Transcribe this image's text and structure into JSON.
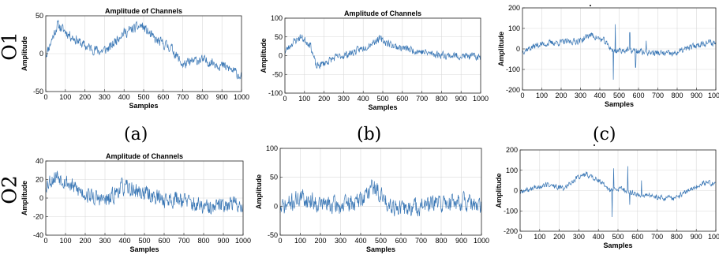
{
  "row_labels": [
    "O1",
    "O2"
  ],
  "sub_labels": [
    "(a)",
    "(b)",
    "(c)"
  ],
  "colors": {
    "line": "#3a77b5",
    "grid": "#d9d9d9",
    "frame": "#262626"
  },
  "chart_data": [
    {
      "id": "O1-a",
      "type": "line",
      "title": "Amplitude of Channels",
      "xlabel": "Samples",
      "ylabel": "Amplitude",
      "xlim": [
        0,
        1000
      ],
      "ylim": [
        -50,
        50
      ],
      "xticks": [
        0,
        100,
        200,
        300,
        400,
        500,
        600,
        700,
        800,
        900,
        1000
      ],
      "yticks": [
        -50,
        0,
        50
      ],
      "grid": true,
      "noise": 6,
      "seed": 11,
      "trend_x": [
        0,
        60,
        120,
        200,
        280,
        330,
        380,
        450,
        490,
        560,
        640,
        700,
        780,
        860,
        940,
        1000
      ],
      "trend_y": [
        -2,
        38,
        25,
        10,
        3,
        8,
        25,
        33,
        37,
        18,
        8,
        -15,
        -8,
        -12,
        -20,
        -30
      ]
    },
    {
      "id": "O1-b",
      "type": "line",
      "title": "Amplitude of Channels",
      "xlabel": "Samples",
      "ylabel": "Amplitude",
      "xlim": [
        0,
        1000
      ],
      "ylim": [
        -100,
        100
      ],
      "xticks": [
        0,
        100,
        200,
        300,
        400,
        500,
        600,
        700,
        800,
        900,
        1000
      ],
      "yticks": [
        -100,
        -50,
        0,
        50,
        100
      ],
      "grid": true,
      "noise": 9,
      "seed": 23,
      "trend_x": [
        0,
        40,
        80,
        130,
        160,
        200,
        260,
        330,
        400,
        480,
        560,
        650,
        750,
        850,
        950,
        1000
      ],
      "trend_y": [
        10,
        35,
        50,
        30,
        -30,
        -20,
        -5,
        5,
        20,
        45,
        25,
        15,
        5,
        0,
        -2,
        -5
      ]
    },
    {
      "id": "O1-c",
      "type": "line",
      "title": "",
      "xlabel": "Samples",
      "ylabel": "Amplitude",
      "xlim": [
        0,
        1000
      ],
      "ylim": [
        -200,
        200
      ],
      "xticks": [
        0,
        100,
        200,
        300,
        400,
        500,
        600,
        700,
        800,
        900,
        1000
      ],
      "yticks": [
        -200,
        -100,
        0,
        100,
        200
      ],
      "grid": true,
      "noise": 14,
      "seed": 37,
      "trend_x": [
        0,
        80,
        160,
        240,
        300,
        350,
        420,
        470,
        540,
        620,
        700,
        780,
        860,
        940,
        1000
      ],
      "trend_y": [
        -10,
        20,
        30,
        35,
        40,
        70,
        40,
        -10,
        -5,
        -15,
        -20,
        -25,
        5,
        30,
        30
      ],
      "spikes": [
        [
          470,
          -150
        ],
        [
          480,
          120
        ],
        [
          555,
          80
        ],
        [
          585,
          -90
        ],
        [
          640,
          40
        ]
      ]
    },
    {
      "id": "O2-a",
      "type": "line",
      "title": "Amplitude of Channels",
      "xlabel": "Samples",
      "ylabel": "Amplitude",
      "xlim": [
        0,
        1000
      ],
      "ylim": [
        -40,
        40
      ],
      "xticks": [
        0,
        100,
        200,
        300,
        400,
        500,
        600,
        700,
        800,
        900,
        1000
      ],
      "yticks": [
        -40,
        -20,
        0,
        20,
        40
      ],
      "grid": true,
      "noise": 8,
      "seed": 53,
      "trend_x": [
        0,
        60,
        150,
        250,
        320,
        380,
        450,
        520,
        600,
        680,
        760,
        840,
        920,
        1000
      ],
      "trend_y": [
        15,
        25,
        10,
        0,
        -3,
        12,
        8,
        4,
        -2,
        0,
        -8,
        -12,
        -5,
        -8
      ]
    },
    {
      "id": "O2-b",
      "type": "line",
      "title": "",
      "xlabel": "Samples",
      "ylabel": "Amplitude",
      "xlim": [
        0,
        1000
      ],
      "ylim": [
        -50,
        100
      ],
      "xticks": [
        0,
        100,
        200,
        300,
        400,
        500,
        600,
        700,
        800,
        900,
        1000
      ],
      "yticks": [
        -50,
        0,
        50,
        100
      ],
      "grid": true,
      "noise": 14,
      "seed": 71,
      "trend_x": [
        0,
        100,
        200,
        300,
        400,
        460,
        520,
        600,
        700,
        800,
        900,
        1000
      ],
      "trend_y": [
        -5,
        15,
        5,
        0,
        10,
        35,
        10,
        -5,
        0,
        5,
        10,
        -5
      ]
    },
    {
      "id": "O2-c",
      "type": "line",
      "title": "",
      "xlabel": "Samples",
      "ylabel": "Amplitude",
      "xlim": [
        0,
        1000
      ],
      "ylim": [
        -200,
        200
      ],
      "xticks": [
        0,
        100,
        200,
        300,
        400,
        500,
        600,
        700,
        800,
        900,
        1000
      ],
      "yticks": [
        -200,
        -100,
        0,
        100,
        200
      ],
      "grid": true,
      "noise": 12,
      "seed": 89,
      "trend_x": [
        0,
        60,
        140,
        220,
        300,
        340,
        400,
        460,
        520,
        600,
        700,
        780,
        860,
        940,
        1000
      ],
      "trend_y": [
        -10,
        10,
        30,
        10,
        70,
        80,
        50,
        0,
        10,
        -20,
        -30,
        -40,
        0,
        40,
        30
      ],
      "spikes": [
        [
          470,
          -130
        ],
        [
          478,
          110
        ],
        [
          550,
          120
        ],
        [
          560,
          -70
        ],
        [
          620,
          50
        ]
      ]
    }
  ]
}
